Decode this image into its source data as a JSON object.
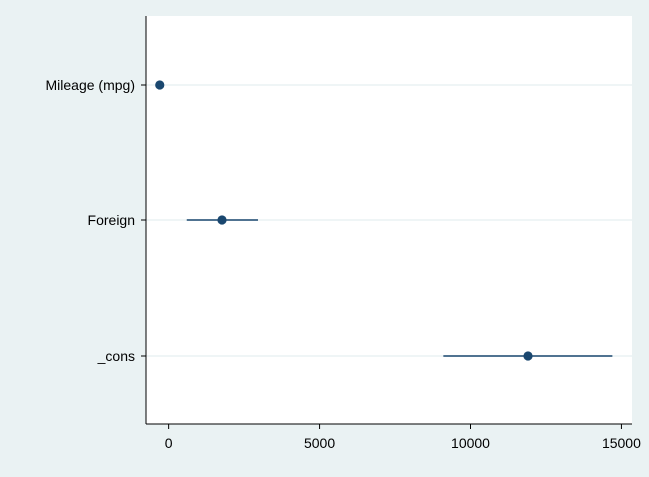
{
  "chart_data": {
    "type": "scatter",
    "title": "",
    "xlabel": "",
    "ylabel": "",
    "xlim": [
      -750,
      15350
    ],
    "xticks": [
      0,
      5000,
      10000,
      15000
    ],
    "xtick_labels": [
      "0",
      "5000",
      "10000",
      "15000"
    ],
    "grid": "horizontal",
    "legend": "none",
    "categories": [
      "Mileage (mpg)",
      "Foreign",
      "_cons"
    ],
    "series": [
      {
        "estimate": [
          -294,
          1768,
          11905
        ],
        "ci_low": [
          -420,
          600,
          9100
        ],
        "ci_high": [
          -170,
          2960,
          14700
        ]
      }
    ]
  },
  "colors": {
    "background": "#eaf2f3",
    "plot_area": "#ffffff",
    "marker": "#1a476f",
    "gridline": "#eaf2f3",
    "axis": "#000000"
  }
}
